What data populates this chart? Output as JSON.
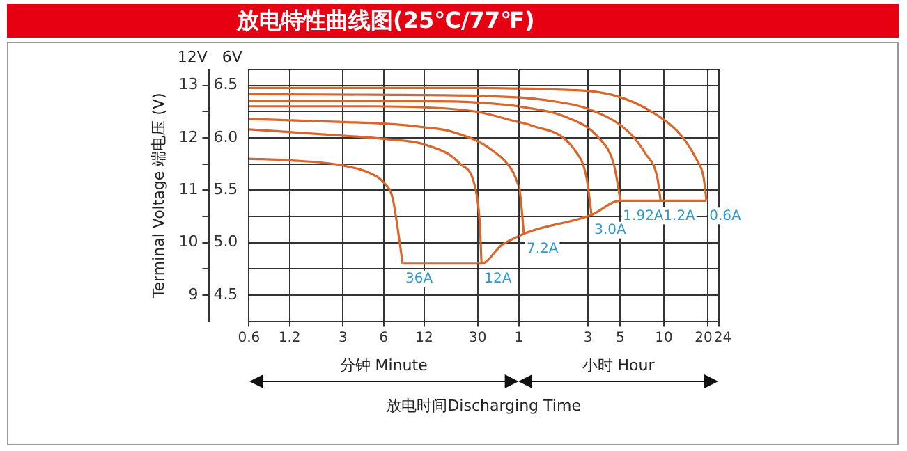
{
  "chart_data": [
    {
      "type": "line",
      "title": "放电特性曲线图(25℃/77℉)",
      "xlabel": "分钟 Minute",
      "ylabel": "12V",
      "y2label": "6V",
      "annotations": [
        "Terminal Voltage 端电压 (V)",
        "放电时间Discharging Time"
      ],
      "log": "x",
      "grid": true,
      "legend": false,
      "marker": "none",
      "line_style": "solid",
      "xlim": [
        0.6,
        60
      ],
      "xticks": [
        0.6,
        1.2,
        3,
        6,
        12,
        30
      ],
      "ylim": [
        8.5,
        13.3
      ],
      "yticks": [
        9,
        {
          "value": 9.5,
          "label": null
        },
        10,
        {
          "value": 10.5,
          "label": null
        },
        11,
        {
          "value": 11.5,
          "label": null
        },
        12,
        {
          "value": 12.5,
          "label": null
        },
        13
      ],
      "y2lim": [
        4.25,
        6.65
      ],
      "y2ticks": [
        4.5,
        {
          "value": 5,
          "label": "5.0"
        },
        5.5,
        {
          "value": 6,
          "label": "6.0"
        },
        6.5
      ],
      "series": [
        {
          "color": "#d9662b",
          "x": [
            0.6,
            5,
            30,
            60
          ],
          "values": [
            12.95,
            12.95,
            12.95,
            12.94
          ]
        },
        {
          "color": "#d9662b",
          "x": [
            0.6,
            5,
            30,
            60
          ],
          "values": [
            12.83,
            12.82,
            12.8,
            12.77
          ]
        },
        {
          "color": "#d9662b",
          "x": [
            0.6,
            5,
            20,
            48,
            60
          ],
          "values": [
            12.7,
            12.7,
            12.69,
            12.63,
            12.6
          ]
        },
        {
          "color": "#d9662b",
          "x": [
            0.6,
            5,
            12,
            29,
            60
          ],
          "values": [
            12.6,
            12.6,
            12.58,
            12.5,
            12.3
          ]
        },
        {
          "color": "#d9662b",
          "x": [
            0.6,
            3,
            6,
            12,
            19,
            38,
            55,
            60
          ],
          "values": [
            12.36,
            12.3,
            12.27,
            12.2,
            12.12,
            11.77,
            11.34,
            11.1
          ]
        },
        {
          "name": "12A",
          "color": "#d9662b",
          "x": [
            0.6,
            2.6,
            6,
            12.5,
            22,
            29,
            31,
            32
          ],
          "values": [
            12.16,
            12.05,
            11.98,
            11.86,
            11.51,
            11.0,
            10.4,
            9.6
          ]
        },
        {
          "name": "36A",
          "color": "#d9662b",
          "x": [
            0.6,
            1.2,
            3,
            5,
            6,
            7,
            7.5,
            8,
            8.3
          ],
          "values": [
            11.6,
            11.57,
            11.47,
            11.3,
            11.15,
            10.85,
            10.4,
            9.9,
            9.6
          ]
        },
        {
          "color": "#d9662b",
          "x": [
            8.3,
            32,
            45,
            60
          ],
          "values": [
            9.6,
            9.6,
            9.95,
            10.12
          ]
        }
      ]
    },
    {
      "type": "line",
      "xlabel": "小时 Hour",
      "log": "x",
      "grid": true,
      "legend": false,
      "marker": "none",
      "line_style": "solid",
      "tick_labels": "x",
      "xlim": [
        1,
        24
      ],
      "xticks": [
        1,
        3,
        5,
        10,
        20,
        24
      ],
      "ylim": [
        8.5,
        13.3
      ],
      "yticks": [
        9,
        {
          "value": 9.5,
          "label": null
        },
        10,
        {
          "value": 10.5,
          "label": null
        },
        11,
        {
          "value": 11.5,
          "label": null
        },
        12,
        {
          "value": 12.5,
          "label": null
        },
        13
      ],
      "series": [
        {
          "name": "0.6A",
          "color": "#d9662b",
          "x": [
            1,
            1.5,
            4.5,
            8.67,
            13.3,
            16.7,
            18.8,
            19.7
          ],
          "values": [
            12.94,
            12.93,
            12.81,
            12.46,
            12.03,
            11.6,
            11.25,
            10.8
          ]
        },
        {
          "name": "1.2A",
          "color": "#d9662b",
          "x": [
            1,
            1.5,
            3,
            5.67,
            7.5,
            9,
            9.5
          ],
          "values": [
            12.77,
            12.72,
            12.55,
            12.12,
            11.69,
            11.25,
            10.8
          ]
        },
        {
          "name": "1.92A",
          "color": "#d9662b",
          "x": [
            1,
            2,
            3.58,
            4.5,
            4.83,
            5
          ],
          "values": [
            12.6,
            12.42,
            11.99,
            11.51,
            11.08,
            10.8
          ]
        },
        {
          "name": "3.0A",
          "color": "#d9662b",
          "x": [
            1,
            1.17,
            2.42,
            2.92,
            3.17
          ],
          "values": [
            12.3,
            12.25,
            11.77,
            11.25,
            10.53
          ]
        },
        {
          "name": "7.2A",
          "color": "#d9662b",
          "x": [
            1,
            1.03,
            1.08
          ],
          "values": [
            11.1,
            10.82,
            10.17
          ]
        },
        {
          "color": "#d9662b",
          "x": [
            1,
            1.08,
            3.17,
            5,
            19.7
          ],
          "values": [
            10.12,
            10.17,
            10.53,
            10.8,
            10.8
          ]
        }
      ]
    }
  ]
}
